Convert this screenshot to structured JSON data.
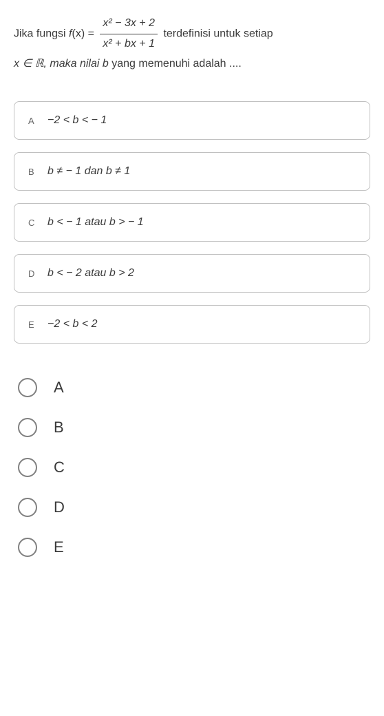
{
  "question": {
    "prefix": "Jika  fungsi  ",
    "func_name": "f",
    "func_var": "(x) = ",
    "numerator": "x² − 3x + 2",
    "denominator": "x² + bx + 1",
    "middle": "  terdefinisi   untuk   setiap",
    "line2_prefix": "x ∈ ℝ, maka nilai ",
    "line2_var": "b",
    "line2_suffix": " yang memenuhi adalah ...."
  },
  "options": [
    {
      "letter": "A",
      "text": "−2 < b < − 1"
    },
    {
      "letter": "B",
      "text": "b ≠ − 1 dan b ≠ 1"
    },
    {
      "letter": "C",
      "text": "b < − 1 atau b > − 1"
    },
    {
      "letter": "D",
      "text": "b < − 2 atau b > 2"
    },
    {
      "letter": "E",
      "text": "−2 < b < 2"
    }
  ],
  "radios": [
    {
      "label": "A"
    },
    {
      "label": "B"
    },
    {
      "label": "C"
    },
    {
      "label": "D"
    },
    {
      "label": "E"
    }
  ],
  "styles": {
    "border_color": "#c0c0c0",
    "text_color": "#3a3a3a",
    "radio_border": "#808080",
    "background": "#ffffff",
    "border_radius": 8,
    "option_fontsize": 16,
    "radio_label_fontsize": 22,
    "radio_size": 28
  }
}
